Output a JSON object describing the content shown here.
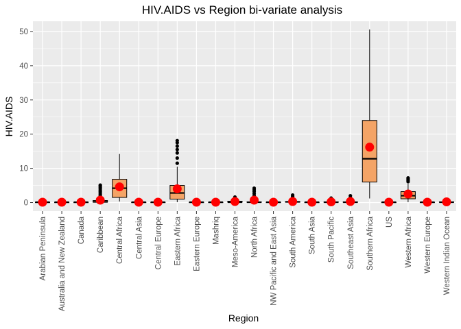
{
  "chart_data": {
    "type": "boxplot",
    "title": "HIV.AIDS vs Region bi-variate analysis",
    "xlabel": "Region",
    "ylabel": "HIV.AIDS",
    "ylim": [
      -2.5,
      53
    ],
    "yticks": [
      0,
      10,
      20,
      30,
      40,
      50
    ],
    "grid": true,
    "colors": {
      "panel": "#ebebeb",
      "grid_major": "#ffffff",
      "box_fill": "#f4a466",
      "box_edge": "#000000",
      "mean_marker": "#ff0000",
      "outlier": "#000000",
      "tick_text": "#4d4d4d"
    },
    "categories": [
      "Arabian Peninsula",
      "Australia and New Zealand",
      "Canada",
      "Caribbean",
      "Central Africa",
      "Central Asia",
      "Central Europe",
      "Eastern Africa",
      "Eastern Europe",
      "Mashriq",
      "Meso-America",
      "North Africa",
      "NW Pacific and East Asia",
      "South America",
      "South Asia",
      "South Pacific",
      "Southeast Asia",
      "Southern Africa",
      "US",
      "Western Africa",
      "Western Europe",
      "Western Indian Ocean"
    ],
    "boxes": [
      {
        "q1": 0.1,
        "median": 0.1,
        "q3": 0.1,
        "wlo": 0.1,
        "whi": 0.1,
        "mean": 0.1,
        "outliers": []
      },
      {
        "q1": 0.1,
        "median": 0.1,
        "q3": 0.1,
        "wlo": 0.1,
        "whi": 0.1,
        "mean": 0.1,
        "outliers": []
      },
      {
        "q1": 0.1,
        "median": 0.1,
        "q3": 0.1,
        "wlo": 0.1,
        "whi": 0.1,
        "mean": 0.1,
        "outliers": []
      },
      {
        "q1": 0.1,
        "median": 0.2,
        "q3": 0.6,
        "wlo": 0.1,
        "whi": 1.1,
        "mean": 0.7,
        "outliers": [
          1.6,
          2.0,
          2.4,
          2.8,
          3.2,
          3.6,
          4.0,
          4.4,
          4.8,
          5.1
        ]
      },
      {
        "q1": 1.5,
        "median": 4.2,
        "q3": 6.8,
        "wlo": 0.3,
        "whi": 14.2,
        "mean": 4.6,
        "outliers": []
      },
      {
        "q1": 0.1,
        "median": 0.1,
        "q3": 0.1,
        "wlo": 0.1,
        "whi": 0.1,
        "mean": 0.1,
        "outliers": []
      },
      {
        "q1": 0.1,
        "median": 0.1,
        "q3": 0.1,
        "wlo": 0.1,
        "whi": 0.1,
        "mean": 0.1,
        "outliers": []
      },
      {
        "q1": 1.0,
        "median": 2.8,
        "q3": 5.0,
        "wlo": 0.1,
        "whi": 10.5,
        "mean": 4.0,
        "outliers": [
          11.5,
          13.0,
          14.5,
          15.5,
          16.5,
          17.5,
          18.1
        ]
      },
      {
        "q1": 0.1,
        "median": 0.1,
        "q3": 0.1,
        "wlo": 0.1,
        "whi": 0.1,
        "mean": 0.1,
        "outliers": []
      },
      {
        "q1": 0.1,
        "median": 0.1,
        "q3": 0.1,
        "wlo": 0.1,
        "whi": 0.1,
        "mean": 0.1,
        "outliers": []
      },
      {
        "q1": 0.1,
        "median": 0.1,
        "q3": 0.4,
        "wlo": 0.1,
        "whi": 0.8,
        "mean": 0.3,
        "outliers": [
          1.2,
          1.6
        ]
      },
      {
        "q1": 0.1,
        "median": 0.1,
        "q3": 0.2,
        "wlo": 0.1,
        "whi": 0.4,
        "mean": 0.7,
        "outliers": [
          0.9,
          1.5,
          2.0,
          2.6,
          3.2,
          3.7,
          4.2
        ]
      },
      {
        "q1": 0.1,
        "median": 0.1,
        "q3": 0.1,
        "wlo": 0.1,
        "whi": 0.1,
        "mean": 0.1,
        "outliers": []
      },
      {
        "q1": 0.1,
        "median": 0.2,
        "q3": 0.3,
        "wlo": 0.1,
        "whi": 0.6,
        "mean": 0.3,
        "outliers": [
          1.0,
          1.4,
          1.8,
          2.2
        ]
      },
      {
        "q1": 0.1,
        "median": 0.1,
        "q3": 0.1,
        "wlo": 0.1,
        "whi": 0.1,
        "mean": 0.1,
        "outliers": []
      },
      {
        "q1": 0.1,
        "median": 0.1,
        "q3": 0.2,
        "wlo": 0.1,
        "whi": 0.4,
        "mean": 0.2,
        "outliers": [
          0.8,
          1.3
        ]
      },
      {
        "q1": 0.1,
        "median": 0.1,
        "q3": 0.2,
        "wlo": 0.1,
        "whi": 0.4,
        "mean": 0.3,
        "outliers": [
          0.9,
          1.5,
          2.0
        ]
      },
      {
        "q1": 6.0,
        "median": 12.8,
        "q3": 24.0,
        "wlo": 1.2,
        "whi": 50.6,
        "mean": 16.2,
        "outliers": []
      },
      {
        "q1": 0.1,
        "median": 0.1,
        "q3": 0.1,
        "wlo": 0.1,
        "whi": 0.1,
        "mean": 0.1,
        "outliers": []
      },
      {
        "q1": 1.1,
        "median": 2.0,
        "q3": 3.2,
        "wlo": 0.1,
        "whi": 5.5,
        "mean": 2.5,
        "outliers": [
          6.1,
          6.5,
          6.9,
          7.2
        ]
      },
      {
        "q1": 0.1,
        "median": 0.1,
        "q3": 0.1,
        "wlo": 0.1,
        "whi": 0.1,
        "mean": 0.1,
        "outliers": []
      },
      {
        "q1": 0.1,
        "median": 0.1,
        "q3": 0.2,
        "wlo": 0.1,
        "whi": 0.3,
        "mean": 0.2,
        "outliers": []
      }
    ]
  }
}
